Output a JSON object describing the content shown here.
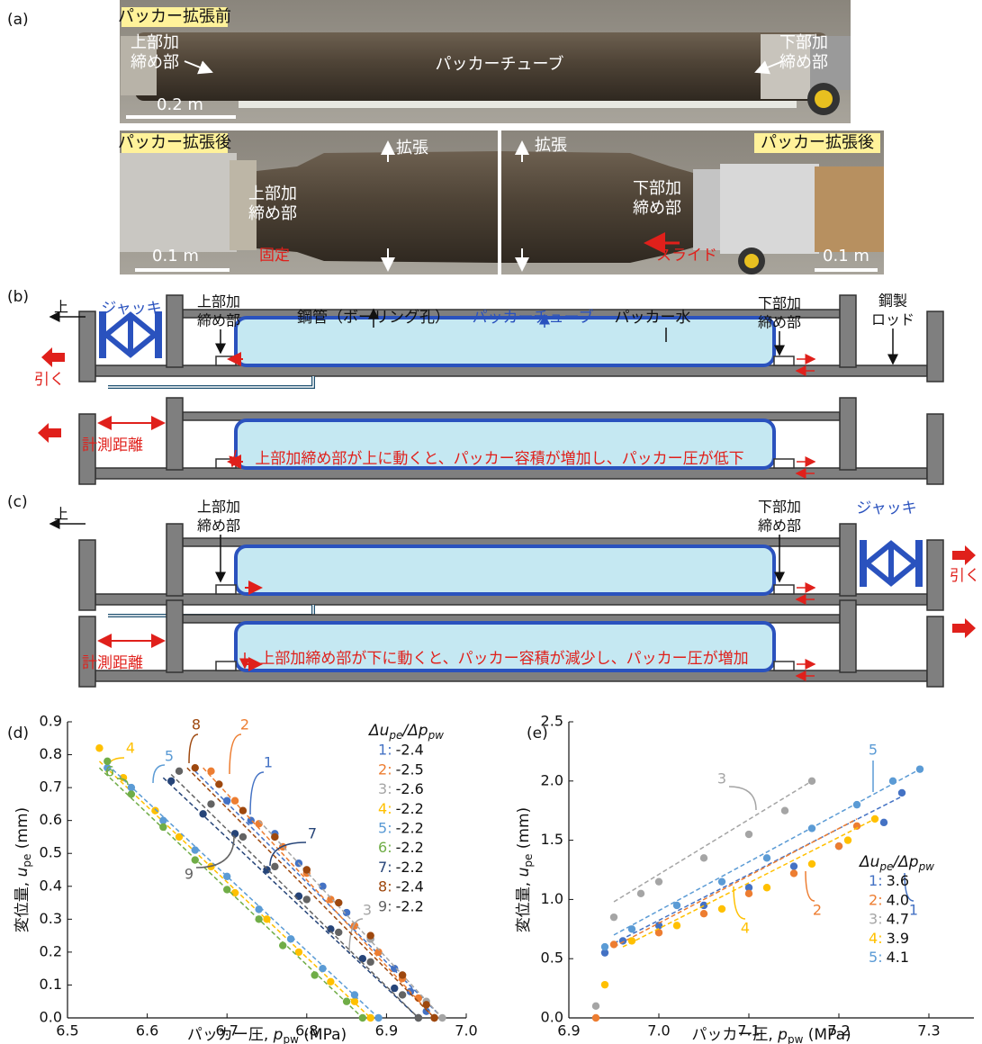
{
  "panels": {
    "a": "(a)",
    "b": "(b)",
    "c": "(c)"
  },
  "photos": {
    "before": {
      "title": "パッカー拡張前",
      "upper": [
        "上部加",
        "締め部"
      ],
      "tube": "パッカーチューブ",
      "lower": [
        "下部加",
        "締め部"
      ],
      "scale": "0.2 m"
    },
    "after_upper": {
      "title": "パッカー拡張後",
      "expand": "拡張",
      "upper": [
        "上部加",
        "締め部"
      ],
      "fixed": "固定",
      "scale": "0.1 m"
    },
    "after_lower": {
      "title": "パッカー拡張後",
      "expand": "拡張",
      "lower": [
        "下部加",
        "締め部"
      ],
      "slide": "スライド",
      "scale": "0.1 m"
    }
  },
  "diagram_b": {
    "up": "上",
    "jack": "ジャッキ",
    "pull": "引く",
    "upper": [
      "上部加",
      "締め部"
    ],
    "pipe": "鋼管（ボーリング孔）",
    "tube": "パッカーチューブ",
    "water": "パッカー水",
    "lower": [
      "下部加",
      "締め部"
    ],
    "rod": [
      "鋼製",
      "ロッド"
    ],
    "distance": "計測距離",
    "note": "上部加締め部が上に動くと、パッカー容積が増加し、パッカー圧が低下"
  },
  "diagram_c": {
    "up": "上",
    "upper": [
      "上部加",
      "締め部"
    ],
    "lower": [
      "下部加",
      "締め部"
    ],
    "jack": "ジャッキ",
    "pull": "引く",
    "distance": "計測距離",
    "note": "上部加締め部が下に動くと、パッカー容積が減少し、パッカー圧が増加"
  },
  "chart_data": [
    {
      "type": "scatter",
      "panel": "(d)",
      "xlabel": {
        "pre": "パッカー圧, ",
        "var": "p",
        "sub": "pw",
        "post": " (MPa)"
      },
      "ylabel": {
        "pre": "変位量, ",
        "var": "u",
        "sub": "pe",
        "post": " (mm)"
      },
      "legend_title": [
        "Δu",
        "pe",
        "/Δp",
        "pw"
      ],
      "legend_separator": ":",
      "xlim": [
        6.5,
        7.0
      ],
      "ylim": [
        0,
        0.9
      ],
      "xticks": [
        6.5,
        6.6,
        6.7,
        6.8,
        6.9,
        {
          "value": 7,
          "label": "7.0"
        }
      ],
      "yticks": [
        {
          "value": 0,
          "label": "0.0"
        },
        0.1,
        0.2,
        0.3,
        0.4,
        0.5,
        0.6,
        0.7,
        0.8,
        0.9
      ],
      "series": [
        {
          "name": "1",
          "color": "#4472c4",
          "slope": -2.4,
          "x": [
            6.7,
            6.73,
            6.76,
            6.79,
            6.82,
            6.85,
            6.88,
            6.91,
            6.93,
            6.95,
            6.96
          ],
          "values": [
            0.66,
            0.6,
            0.56,
            0.47,
            0.4,
            0.32,
            0.24,
            0.15,
            0.08,
            0.02,
            0.0
          ],
          "fit": {
            "x": [
              6.66,
              6.97
            ],
            "y": [
              0.75,
              0.0
            ]
          }
        },
        {
          "name": "2",
          "color": "#ed7d31",
          "slope": -2.5,
          "x": [
            6.68,
            6.71,
            6.74,
            6.77,
            6.8,
            6.83,
            6.86,
            6.89,
            6.92,
            6.94,
            6.96
          ],
          "values": [
            0.75,
            0.66,
            0.59,
            0.52,
            0.44,
            0.36,
            0.28,
            0.2,
            0.12,
            0.06,
            0.0
          ],
          "fit": {
            "x": [
              6.67,
              6.96
            ],
            "y": [
              0.76,
              0.0
            ]
          }
        },
        {
          "name": "3",
          "color": "#a5a5a5",
          "slope": -2.6,
          "x": [
            6.76,
            6.8,
            6.84,
            6.88,
            6.92,
            6.95,
            6.97
          ],
          "values": [
            0.55,
            0.45,
            0.35,
            0.24,
            0.13,
            0.05,
            0.0
          ],
          "fit": {
            "x": [
              6.74,
              6.97
            ],
            "y": [
              0.6,
              0.0
            ]
          }
        },
        {
          "name": "4",
          "color": "#ffc000",
          "slope": -2.2,
          "x": [
            6.54,
            6.57,
            6.61,
            6.64,
            6.68,
            6.71,
            6.75,
            6.79,
            6.83,
            6.86,
            6.88
          ],
          "values": [
            0.82,
            0.73,
            0.63,
            0.55,
            0.46,
            0.38,
            0.3,
            0.2,
            0.11,
            0.05,
            0.0
          ],
          "fit": {
            "x": [
              6.54,
              6.88
            ],
            "y": [
              0.78,
              0.0
            ]
          }
        },
        {
          "name": "5",
          "color": "#5b9bd5",
          "slope": -2.2,
          "x": [
            6.55,
            6.58,
            6.62,
            6.66,
            6.7,
            6.74,
            6.78,
            6.82,
            6.86,
            6.89
          ],
          "values": [
            0.76,
            0.7,
            0.6,
            0.51,
            0.43,
            0.33,
            0.24,
            0.15,
            0.07,
            0.0
          ],
          "fit": {
            "x": [
              6.55,
              6.89
            ],
            "y": [
              0.77,
              0.0
            ]
          }
        },
        {
          "name": "6",
          "color": "#70ad47",
          "slope": -2.2,
          "x": [
            6.55,
            6.58,
            6.62,
            6.66,
            6.7,
            6.74,
            6.77,
            6.81,
            6.85,
            6.87
          ],
          "values": [
            0.78,
            0.68,
            0.58,
            0.48,
            0.39,
            0.3,
            0.22,
            0.13,
            0.05,
            0.0
          ],
          "fit": {
            "x": [
              6.54,
              6.87
            ],
            "y": [
              0.76,
              0.0
            ]
          }
        },
        {
          "name": "7",
          "color": "#264478",
          "slope": -2.2,
          "x": [
            6.63,
            6.67,
            6.71,
            6.75,
            6.79,
            6.83,
            6.87,
            6.91,
            6.94
          ],
          "values": [
            0.72,
            0.62,
            0.56,
            0.45,
            0.37,
            0.27,
            0.18,
            0.09,
            0.0
          ],
          "fit": {
            "x": [
              6.62,
              6.94
            ],
            "y": [
              0.73,
              0.0
            ]
          }
        },
        {
          "name": "8",
          "color": "#9e480e",
          "slope": -2.4,
          "x": [
            6.66,
            6.69,
            6.72,
            6.76,
            6.8,
            6.84,
            6.88,
            6.92,
            6.95,
            6.96
          ],
          "values": [
            0.76,
            0.71,
            0.63,
            0.55,
            0.45,
            0.35,
            0.25,
            0.13,
            0.04,
            0.0
          ],
          "fit": {
            "x": [
              6.65,
              6.96
            ],
            "y": [
              0.76,
              0.0
            ]
          }
        },
        {
          "name": "9",
          "color": "#636363",
          "slope": -2.2,
          "x": [
            6.64,
            6.68,
            6.72,
            6.76,
            6.8,
            6.84,
            6.88,
            6.92,
            6.94
          ],
          "values": [
            0.75,
            0.65,
            0.55,
            0.46,
            0.36,
            0.26,
            0.17,
            0.07,
            0.0
          ],
          "fit": {
            "x": [
              6.63,
              6.94
            ],
            "y": [
              0.74,
              0.0
            ]
          }
        }
      ]
    },
    {
      "type": "scatter",
      "panel": "(e)",
      "xlabel": {
        "pre": "パッカー圧, ",
        "var": "p",
        "sub": "pw",
        "post": " (MPa)"
      },
      "ylabel": {
        "pre": "変位量, ",
        "var": "u",
        "sub": "pe",
        "post": " (mm)"
      },
      "legend_title": [
        "Δu",
        "pe",
        "/Δp",
        "pw"
      ],
      "legend_separator": ":",
      "xlim": [
        6.9,
        7.35
      ],
      "ylim": [
        0,
        2.5
      ],
      "xticks": [
        6.9,
        {
          "value": 7,
          "label": "7.0"
        },
        7.1,
        7.2,
        7.3
      ],
      "yticks": [
        {
          "value": 0,
          "label": "0.0"
        },
        0.5,
        {
          "value": 1,
          "label": "1.0"
        },
        1.5,
        {
          "value": 2,
          "label": "2.0"
        },
        2.5
      ],
      "series": [
        {
          "name": "1",
          "color": "#4472c4",
          "slope": 3.6,
          "x": [
            6.94,
            6.96,
            7.0,
            7.05,
            7.1,
            7.15,
            7.2,
            7.25,
            7.27
          ],
          "values": [
            0.55,
            0.65,
            0.78,
            0.95,
            1.1,
            1.28,
            1.45,
            1.65,
            1.9
          ],
          "fit": {
            "x": [
              6.95,
              7.27
            ],
            "y": [
              0.63,
              1.87
            ]
          }
        },
        {
          "name": "2",
          "color": "#ed7d31",
          "slope": {
            "value": 4,
            "label": "4.0"
          },
          "x": [
            6.93,
            6.95,
            7.0,
            7.05,
            7.1,
            7.15,
            7.2,
            7.22
          ],
          "values": [
            0.0,
            0.62,
            0.72,
            0.88,
            1.05,
            1.22,
            1.45,
            1.62
          ],
          "fit": {
            "x": [
              6.95,
              7.22
            ],
            "y": [
              0.6,
              1.68
            ]
          }
        },
        {
          "name": "3",
          "color": "#a5a5a5",
          "slope": 4.7,
          "x": [
            6.93,
            6.95,
            6.98,
            7.0,
            7.05,
            7.1,
            7.14,
            7.17
          ],
          "values": [
            0.1,
            0.85,
            1.05,
            1.15,
            1.35,
            1.55,
            1.75,
            2.0
          ],
          "fit": {
            "x": [
              6.95,
              7.17
            ],
            "y": [
              0.98,
              2.0
            ]
          }
        },
        {
          "name": "4",
          "color": "#ffc000",
          "slope": 3.9,
          "x": [
            6.94,
            6.97,
            7.02,
            7.07,
            7.12,
            7.17,
            7.21,
            7.24
          ],
          "values": [
            0.28,
            0.65,
            0.78,
            0.92,
            1.1,
            1.3,
            1.5,
            1.68
          ],
          "fit": {
            "x": [
              6.96,
              7.24
            ],
            "y": [
              0.6,
              1.68
            ]
          }
        },
        {
          "name": "5",
          "color": "#5b9bd5",
          "slope": 4.1,
          "x": [
            6.94,
            6.97,
            7.02,
            7.07,
            7.12,
            7.17,
            7.22,
            7.26,
            7.29
          ],
          "values": [
            0.6,
            0.75,
            0.95,
            1.15,
            1.35,
            1.6,
            1.8,
            2.0,
            2.1
          ],
          "fit": {
            "x": [
              6.95,
              7.29
            ],
            "y": [
              0.7,
              2.1
            ]
          }
        }
      ]
    }
  ]
}
